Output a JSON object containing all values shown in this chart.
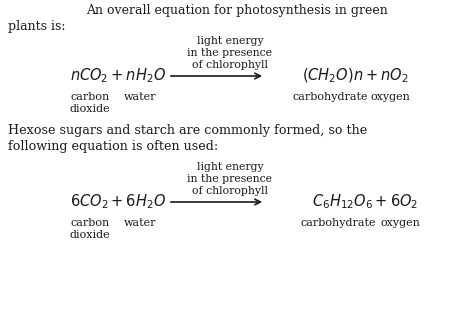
{
  "bg_color": "#ffffff",
  "text_color": "#1a1a1a",
  "title_line1": "An overall equation for photosynthesis in green",
  "title_line2": "plants is:",
  "above_arrow1_line1": "light energy",
  "above_arrow1_line2": "in the presence",
  "above_arrow1_line3": "of chlorophyll",
  "eq1_left": "$nCO_2 + nH_2O$",
  "eq1_right": "$(CH_2O)n + nO_2$",
  "eq1_left_label1": "carbon",
  "eq1_left_label2": "water",
  "eq1_left_label3": "dioxide",
  "eq1_right_label1": "carbohydrate",
  "eq1_right_label2": "oxygen",
  "body_line1": "Hexose sugars and starch are commonly formed, so the",
  "body_line2": "following equation is often used:",
  "above_arrow2_line1": "light energy",
  "above_arrow2_line2": "in the presence",
  "above_arrow2_line3": "of chlorophyll",
  "eq2_left": "$6CO_2 + 6H_2O$",
  "eq2_right": "$C_6H_{12}O_6 + 6O_2$",
  "eq2_left_label1": "carbon",
  "eq2_left_label2": "water",
  "eq2_left_label3": "dioxide",
  "eq2_right_label1": "carbohydrate",
  "eq2_right_label2": "oxygen",
  "fig_width": 4.74,
  "fig_height": 3.12,
  "dpi": 100
}
